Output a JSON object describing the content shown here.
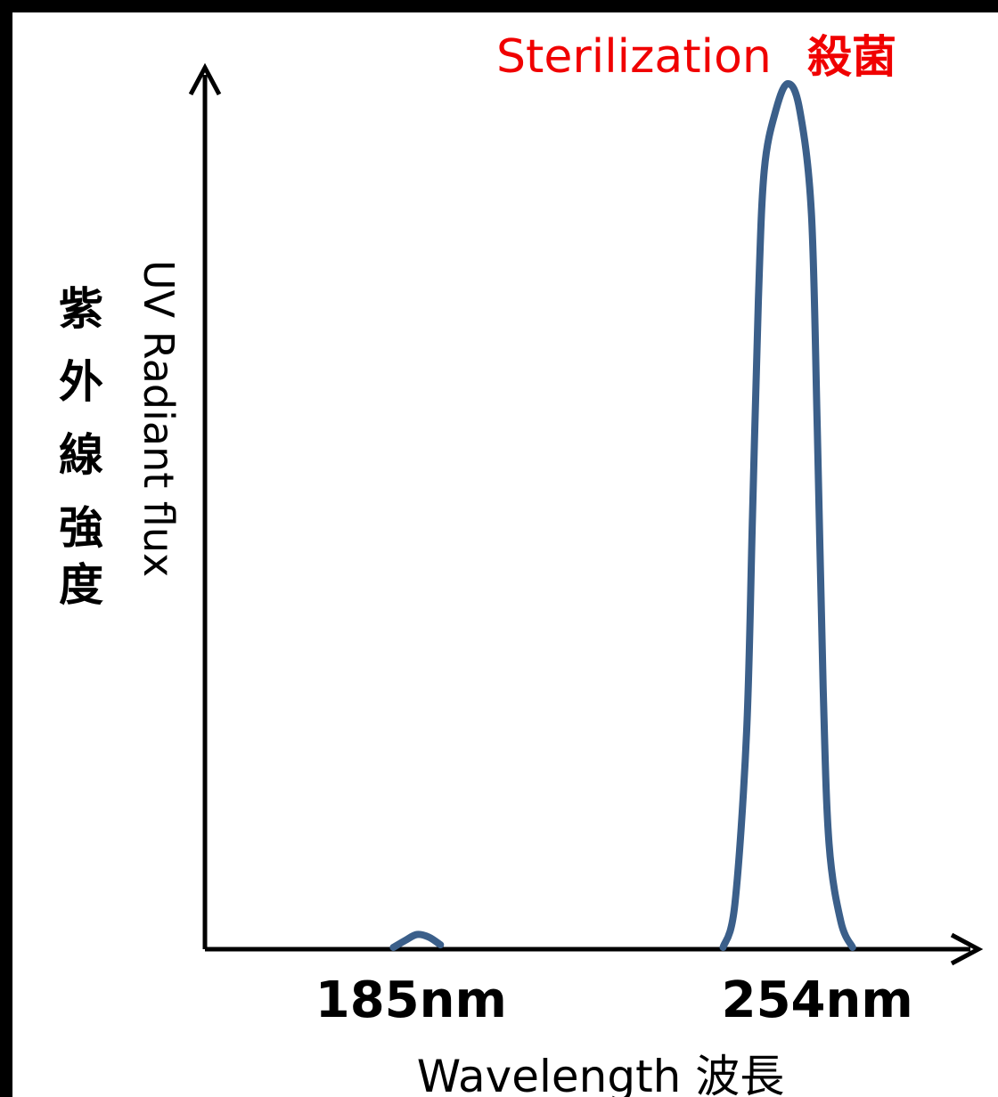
{
  "chart_data": {
    "type": "line",
    "title": "",
    "xlabel": "Wavelength 波長",
    "ylabel": "UV Radiant flux",
    "ylabel_jp": [
      "紫",
      "外",
      "線",
      "強",
      "度"
    ],
    "x_ticks": [
      {
        "value": 185,
        "label": "185nm"
      },
      {
        "value": 254,
        "label": "254nm"
      }
    ],
    "series": [
      {
        "color": "#3b5f8a",
        "points": [
          [
            182,
            0.0
          ],
          [
            184,
            0.008
          ],
          [
            186,
            0.015
          ],
          [
            188,
            0.012
          ],
          [
            190,
            0.003
          ],
          [
            238,
            0.0
          ],
          [
            240,
            0.05
          ],
          [
            242,
            0.25
          ],
          [
            243,
            0.5
          ],
          [
            244,
            0.75
          ],
          [
            245,
            0.9
          ],
          [
            247,
            0.97
          ],
          [
            249,
            1.0
          ],
          [
            251,
            0.97
          ],
          [
            253,
            0.85
          ],
          [
            254,
            0.6
          ],
          [
            255,
            0.3
          ],
          [
            256,
            0.12
          ],
          [
            258,
            0.03
          ],
          [
            260,
            0.0
          ]
        ]
      }
    ],
    "annotations": [
      {
        "text": "Sterilization",
        "color": "#f00000"
      },
      {
        "text": "殺菌",
        "color": "#f00000"
      }
    ],
    "xlim": [
      150,
      280
    ],
    "ylim": [
      0,
      1.0
    ],
    "grid": false,
    "legend": "none"
  }
}
